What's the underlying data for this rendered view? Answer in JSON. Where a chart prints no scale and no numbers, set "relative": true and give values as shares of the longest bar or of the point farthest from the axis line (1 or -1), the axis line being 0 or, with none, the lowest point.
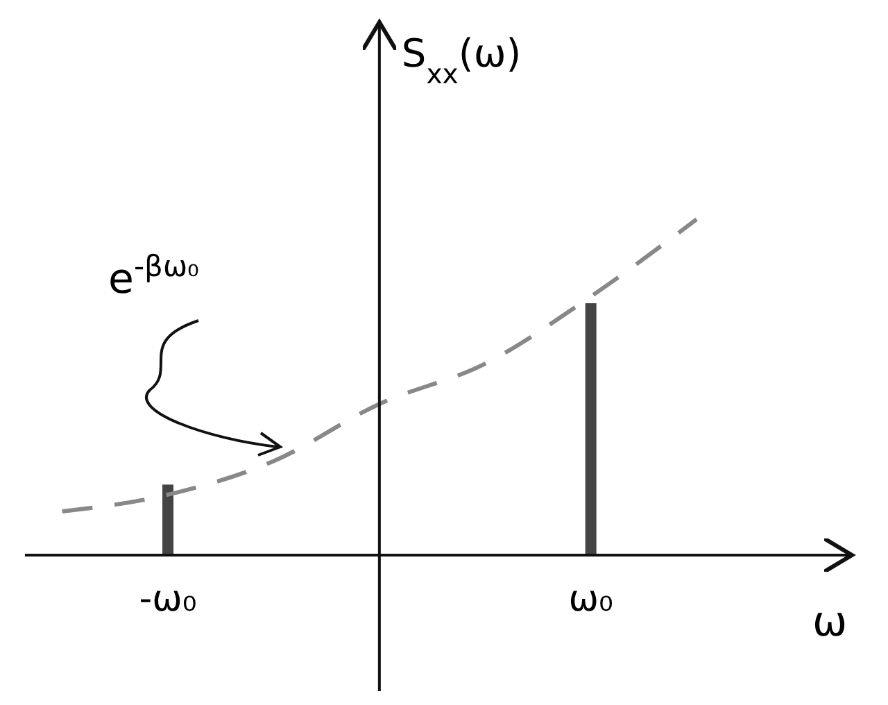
{
  "chart_data": {
    "type": "line",
    "relative": true,
    "xlabel": "ω",
    "ylabel": "S$_{xx}$(ω)",
    "categories": [
      null,
      "-ω₀",
      null,
      null,
      null,
      "ω₀",
      null,
      null
    ],
    "annotations": [
      "e$^{-βω₀}$"
    ],
    "series": [
      {
        "color": "#888888",
        "line_style": "dashed",
        "values": [
          0.13,
          0.18,
          0.28,
          0.45,
          0.57,
          0.77,
          1.0,
          null
        ]
      },
      {
        "type": "bar",
        "color": "#444444",
        "values": [
          null,
          0.21,
          null,
          null,
          null,
          0.75,
          null,
          null
        ]
      }
    ]
  }
}
